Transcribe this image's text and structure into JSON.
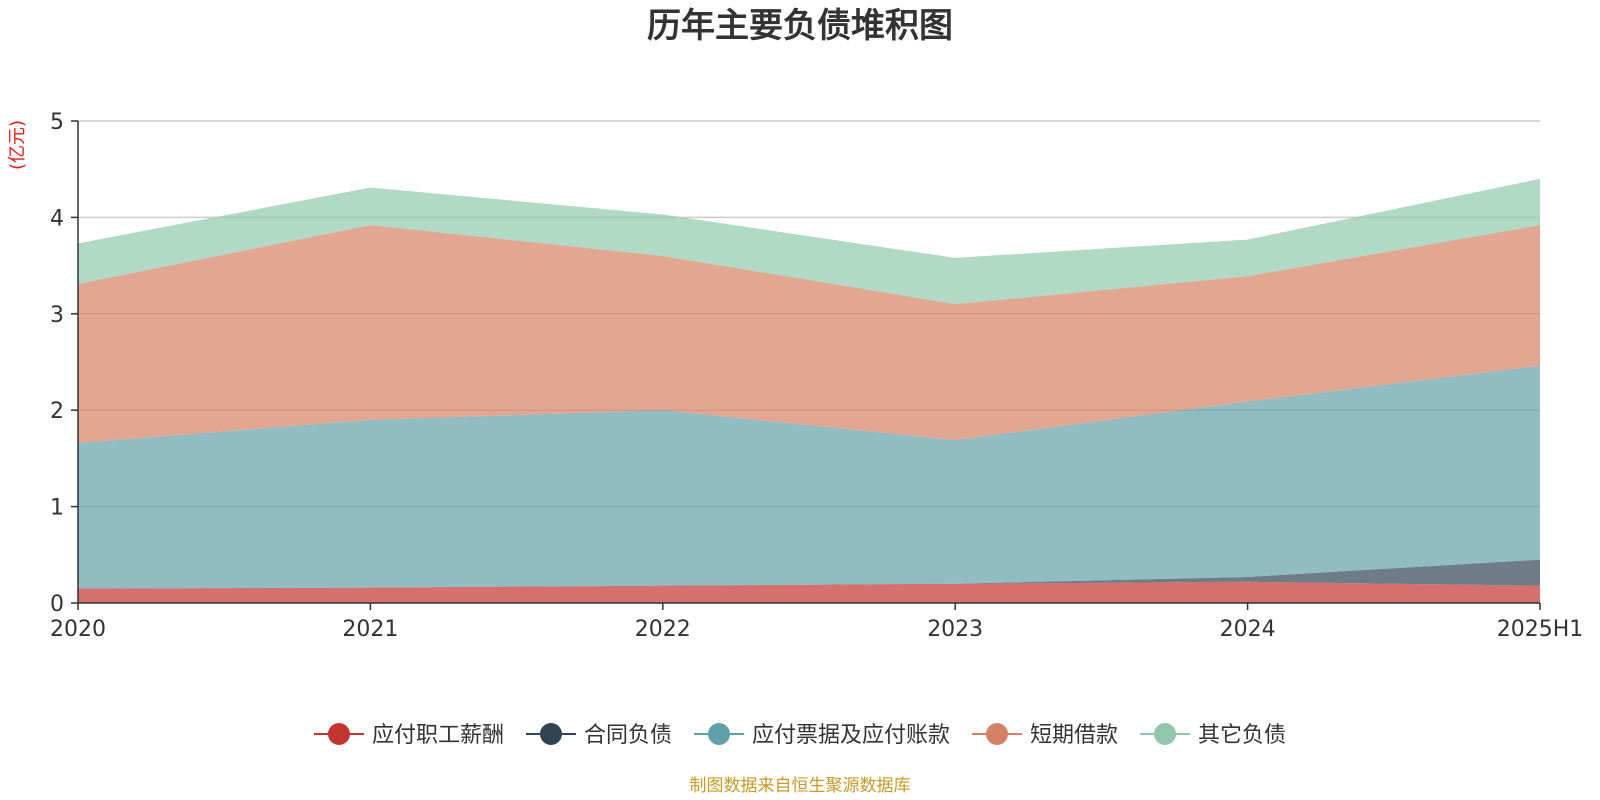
{
  "chart_data": {
    "type": "area",
    "stacked": true,
    "title": "历年主要负债堆积图",
    "unit": "(亿元)",
    "categories": [
      "2020",
      "2021",
      "2022",
      "2023",
      "2024",
      "2025H1"
    ],
    "ylim": [
      0,
      5
    ],
    "yticks": [
      "0",
      "1",
      "2",
      "3",
      "4",
      "5"
    ],
    "grid": true,
    "legend_position": "bottom",
    "series": [
      {
        "name": "应付职工薪酬",
        "values": [
          0.15,
          0.16,
          0.18,
          0.2,
          0.22,
          0.18
        ],
        "color": "#c23531"
      },
      {
        "name": "合同负债",
        "values": [
          0.0,
          0.0,
          0.0,
          0.0,
          0.05,
          0.27
        ],
        "color": "#2f4554"
      },
      {
        "name": "应付票据及应付账款",
        "values": [
          1.51,
          1.74,
          1.82,
          1.49,
          1.82,
          2.01
        ],
        "color": "#61a0a8"
      },
      {
        "name": "短期借款",
        "values": [
          1.65,
          2.02,
          1.6,
          1.41,
          1.3,
          1.46
        ],
        "color": "#d48265"
      },
      {
        "name": "其它负债",
        "values": [
          0.42,
          0.39,
          0.43,
          0.48,
          0.38,
          0.48
        ],
        "color": "#91c7ae"
      }
    ]
  },
  "source_note": "制图数据来自恒生聚源数据库"
}
